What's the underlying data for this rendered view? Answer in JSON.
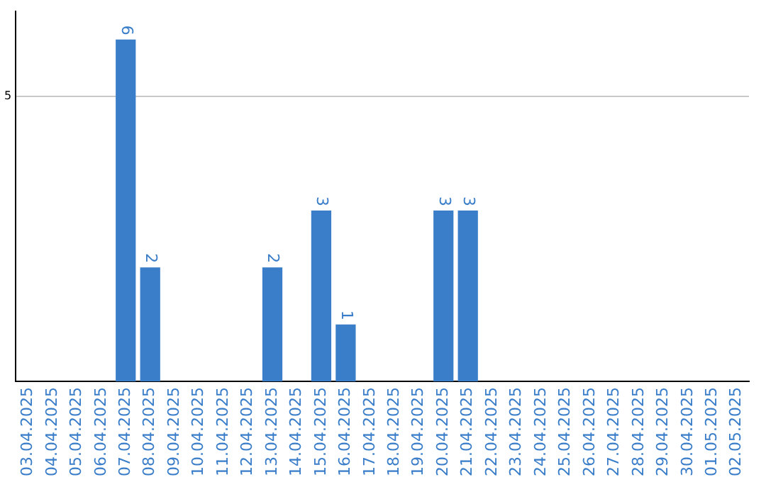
{
  "chart_data": {
    "type": "bar",
    "categories": [
      "03.04.2025",
      "04.04.2025",
      "05.04.2025",
      "06.04.2025",
      "07.04.2025",
      "08.04.2025",
      "09.04.2025",
      "10.04.2025",
      "11.04.2025",
      "12.04.2025",
      "13.04.2025",
      "14.04.2025",
      "15.04.2025",
      "16.04.2025",
      "17.04.2025",
      "18.04.2025",
      "19.04.2025",
      "20.04.2025",
      "21.04.2025",
      "22.04.2025",
      "23.04.2025",
      "24.04.2025",
      "25.04.2025",
      "26.04.2025",
      "27.04.2025",
      "28.04.2025",
      "29.04.2025",
      "30.04.2025",
      "01.05.2025",
      "02.05.2025"
    ],
    "values": [
      0,
      0,
      0,
      0,
      6,
      2,
      0,
      0,
      0,
      0,
      2,
      0,
      3,
      1,
      0,
      0,
      0,
      3,
      3,
      0,
      0,
      0,
      0,
      0,
      0,
      0,
      0,
      0,
      0,
      0
    ],
    "value_labels": [
      null,
      null,
      null,
      null,
      "6",
      "2",
      null,
      null,
      null,
      null,
      "2",
      null,
      "3",
      "1",
      null,
      null,
      null,
      "3",
      "3",
      null,
      null,
      null,
      null,
      null,
      null,
      null,
      null,
      null,
      null,
      null
    ],
    "color": "#3a7dc9",
    "ylim": [
      0,
      6.5
    ],
    "yticks": [
      5
    ],
    "grid": "y"
  }
}
